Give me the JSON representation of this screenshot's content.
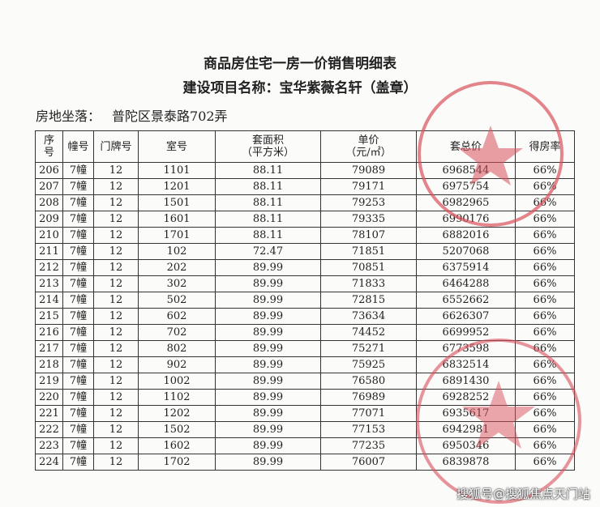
{
  "document": {
    "title": "商品房住宅一房一价销售明细表",
    "project": "建设项目名称：宝华紫薇名轩（盖章）",
    "location_label": "房地坐落：",
    "location_value": "普陀区景泰路702弄"
  },
  "table": {
    "headers": [
      "序\n号",
      "幢号",
      "门牌号",
      "室号",
      "套面积\n（平方米）",
      "单价\n（元/㎡）",
      "套总价",
      "得房率"
    ],
    "rows": [
      [
        "206",
        "7幢",
        "12",
        "1101",
        "88.11",
        "79089",
        "6968544",
        "66%"
      ],
      [
        "207",
        "7幢",
        "12",
        "1201",
        "88.11",
        "79171",
        "6975754",
        "66%"
      ],
      [
        "208",
        "7幢",
        "12",
        "1501",
        "88.11",
        "79253",
        "6982965",
        "66%"
      ],
      [
        "209",
        "7幢",
        "12",
        "1601",
        "88.11",
        "79335",
        "6990176",
        "66%"
      ],
      [
        "210",
        "7幢",
        "12",
        "1701",
        "88.11",
        "78107",
        "6882016",
        "66%"
      ],
      [
        "211",
        "7幢",
        "12",
        "102",
        "72.47",
        "71851",
        "5207068",
        "66%"
      ],
      [
        "212",
        "7幢",
        "12",
        "202",
        "89.99",
        "70851",
        "6375914",
        "66%"
      ],
      [
        "213",
        "7幢",
        "12",
        "302",
        "89.99",
        "71833",
        "6464288",
        "66%"
      ],
      [
        "214",
        "7幢",
        "12",
        "502",
        "89.99",
        "72815",
        "6552662",
        "66%"
      ],
      [
        "215",
        "7幢",
        "12",
        "602",
        "89.99",
        "73634",
        "6626307",
        "66%"
      ],
      [
        "216",
        "7幢",
        "12",
        "702",
        "89.99",
        "74452",
        "6699952",
        "66%"
      ],
      [
        "217",
        "7幢",
        "12",
        "802",
        "89.99",
        "75271",
        "6773598",
        "66%"
      ],
      [
        "218",
        "7幢",
        "12",
        "902",
        "89.99",
        "75925",
        "6832514",
        "66%"
      ],
      [
        "219",
        "7幢",
        "12",
        "1002",
        "89.99",
        "76580",
        "6891430",
        "66%"
      ],
      [
        "220",
        "7幢",
        "12",
        "1102",
        "89.99",
        "76989",
        "6928252",
        "66%"
      ],
      [
        "221",
        "7幢",
        "12",
        "1202",
        "89.99",
        "77071",
        "6935617",
        "66%"
      ],
      [
        "222",
        "7幢",
        "12",
        "1502",
        "89.99",
        "77153",
        "6942981",
        "66%"
      ],
      [
        "223",
        "7幢",
        "12",
        "1602",
        "89.99",
        "77235",
        "6950346",
        "66%"
      ],
      [
        "224",
        "7幢",
        "12",
        "1702",
        "89.99",
        "76007",
        "6839878",
        "66%"
      ]
    ]
  },
  "stamp_color": "#d9505a",
  "watermark": "搜狐号@搜狐焦点天门站"
}
